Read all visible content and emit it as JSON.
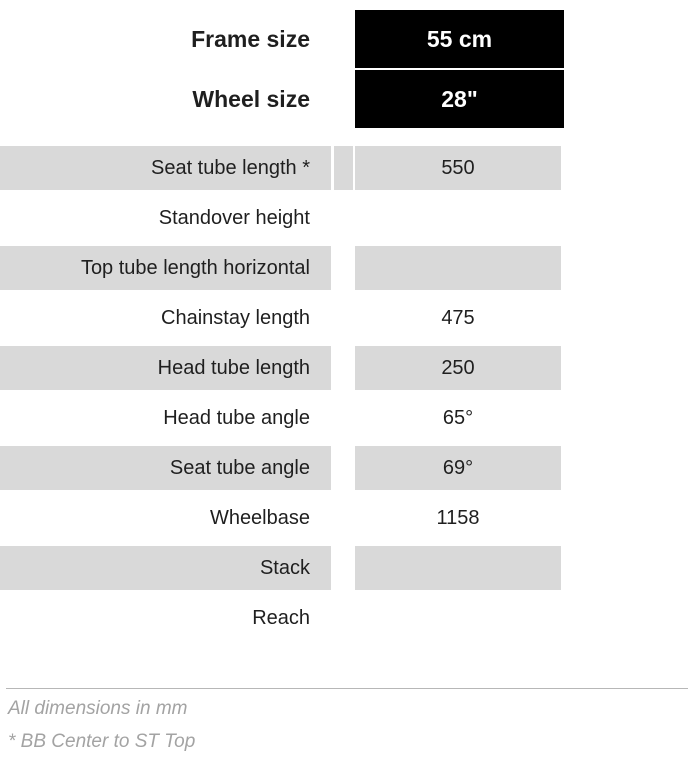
{
  "header": {
    "rows": [
      {
        "label": "Frame size",
        "value": "55 cm"
      },
      {
        "label": "Wheel size",
        "value": "28\""
      }
    ]
  },
  "table": {
    "rows": [
      {
        "label": "Seat tube length *",
        "value": "550"
      },
      {
        "label": "Standover height",
        "value": ""
      },
      {
        "label": "Top tube length horizontal",
        "value": ""
      },
      {
        "label": "Chainstay length",
        "value": "475"
      },
      {
        "label": "Head tube length",
        "value": "250"
      },
      {
        "label": "Head tube angle",
        "value": "65°"
      },
      {
        "label": "Seat tube angle",
        "value": "69°"
      },
      {
        "label": "Wheelbase",
        "value": "1158"
      },
      {
        "label": "Stack",
        "value": ""
      },
      {
        "label": "Reach",
        "value": ""
      }
    ]
  },
  "footer": {
    "note1": "All dimensions in mm",
    "note2": "* BB Center to ST Top"
  },
  "colors": {
    "header_fill": "#000000",
    "header_text": "#ffffff",
    "cell_fill": "#d9d9d9",
    "text": "#1f1f1f",
    "footnote_text": "#a3a3a3",
    "divider": "#b7b7b7"
  }
}
